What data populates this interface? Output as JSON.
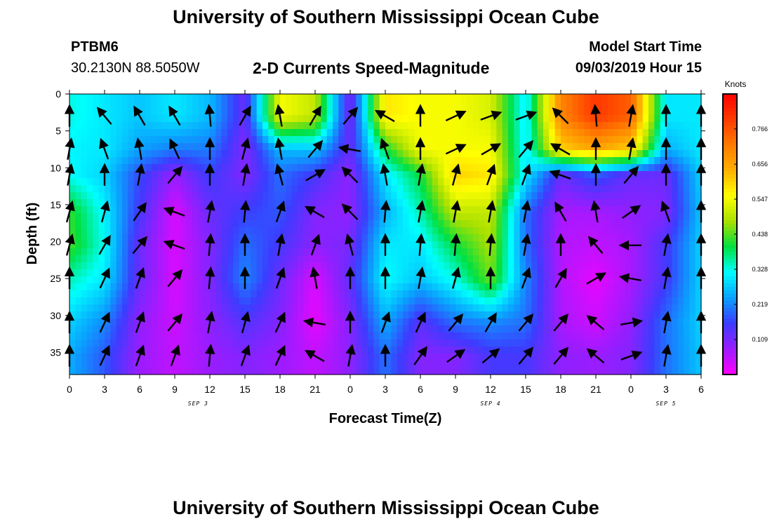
{
  "header": {
    "title": "University of Southern Mississippi Ocean Cube",
    "station": "PTBM6",
    "latlon": "30.2130N 88.5050W",
    "subtitle": "2-D Currents Speed-Magnitude",
    "model_start_label": "Model Start Time",
    "model_start_value": "09/03/2019 Hour 15"
  },
  "footer": {
    "title": "University of Southern Mississippi Ocean Cube"
  },
  "chart_data": {
    "type": "heatmap",
    "xlabel": "Forecast Time(Z)",
    "ylabel": "Depth (ft)",
    "x_tick_labels": [
      "0",
      "3",
      "6",
      "9",
      "12",
      "15",
      "18",
      "21",
      "0",
      "3",
      "6",
      "9",
      "12",
      "15",
      "18",
      "21",
      "0",
      "3",
      "6"
    ],
    "y_ticks": [
      0,
      5,
      10,
      15,
      20,
      25,
      30,
      35
    ],
    "ylim": [
      0,
      38
    ],
    "y_inverted": true,
    "xlim_hours": [
      0,
      54
    ],
    "date_labels": [
      {
        "text": "SEP 3",
        "hour": 11
      },
      {
        "text": "SEP 4",
        "hour": 36
      },
      {
        "text": "SEP 5",
        "hour": 51
      }
    ],
    "colorbar": {
      "title": "Knots",
      "ticks": [
        "0.766",
        "0.656",
        "0.547",
        "0.438",
        "0.328",
        "0.219",
        "0.109"
      ],
      "tick_values": [
        0.766,
        0.656,
        0.547,
        0.438,
        0.328,
        0.219,
        0.109
      ],
      "range": [
        0,
        0.875
      ],
      "colors": [
        "#ff00ff",
        "#9b1cff",
        "#3c3cff",
        "#0aa0ff",
        "#00ffff",
        "#00e040",
        "#a8e000",
        "#ffff00",
        "#ffb000",
        "#ff7a00",
        "#ff3a00",
        "#ff0000"
      ]
    },
    "vector_x_hours": [
      0,
      3,
      6,
      9,
      12,
      15,
      18,
      21,
      24,
      27,
      30,
      33,
      36,
      39,
      42,
      45,
      48,
      51,
      54
    ],
    "vector_depths": [
      3,
      7.5,
      11,
      16,
      20.5,
      25,
      31,
      35.5
    ],
    "speed_field": [
      [
        0.33,
        0.3,
        0.27,
        0.3,
        0.26,
        0.12,
        0.55,
        0.5,
        0.1,
        0.58,
        0.55,
        0.55,
        0.52,
        0.3,
        0.7,
        0.8,
        0.75,
        0.3,
        0.3
      ],
      [
        0.31,
        0.3,
        0.24,
        0.21,
        0.21,
        0.1,
        0.26,
        0.27,
        0.12,
        0.4,
        0.55,
        0.55,
        0.55,
        0.3,
        0.6,
        0.65,
        0.6,
        0.25,
        0.3
      ],
      [
        0.32,
        0.28,
        0.17,
        0.08,
        0.16,
        0.1,
        0.2,
        0.15,
        0.09,
        0.3,
        0.4,
        0.6,
        0.58,
        0.3,
        0.12,
        0.18,
        0.12,
        0.12,
        0.28
      ],
      [
        0.42,
        0.31,
        0.15,
        0.03,
        0.12,
        0.16,
        0.18,
        0.1,
        0.09,
        0.25,
        0.35,
        0.5,
        0.5,
        0.2,
        0.07,
        0.07,
        0.09,
        0.1,
        0.27
      ],
      [
        0.43,
        0.32,
        0.12,
        0.03,
        0.1,
        0.2,
        0.15,
        0.09,
        0.11,
        0.3,
        0.3,
        0.4,
        0.48,
        0.2,
        0.06,
        0.05,
        0.07,
        0.15,
        0.28
      ],
      [
        0.35,
        0.3,
        0.12,
        0.03,
        0.1,
        0.22,
        0.12,
        0.03,
        0.13,
        0.32,
        0.27,
        0.33,
        0.45,
        0.22,
        0.06,
        0.02,
        0.07,
        0.15,
        0.28
      ],
      [
        0.28,
        0.22,
        0.09,
        0.04,
        0.09,
        0.14,
        0.1,
        0.02,
        0.1,
        0.25,
        0.13,
        0.2,
        0.22,
        0.2,
        0.07,
        0.04,
        0.09,
        0.2,
        0.28
      ],
      [
        0.25,
        0.18,
        0.08,
        0.05,
        0.08,
        0.1,
        0.08,
        0.05,
        0.09,
        0.2,
        0.1,
        0.1,
        0.15,
        0.15,
        0.09,
        0.08,
        0.1,
        0.2,
        0.27
      ]
    ],
    "vector_angles_deg": [
      [
        0,
        -40,
        -30,
        -30,
        -5,
        30,
        -10,
        30,
        40,
        -60,
        0,
        65,
        70,
        70,
        -45,
        -5,
        10,
        0,
        0
      ],
      [
        10,
        -20,
        -10,
        -25,
        0,
        15,
        -10,
        40,
        -80,
        -20,
        0,
        65,
        60,
        40,
        -60,
        0,
        10,
        0,
        0
      ],
      [
        10,
        0,
        10,
        40,
        0,
        10,
        -15,
        60,
        -45,
        -10,
        10,
        15,
        20,
        20,
        -70,
        0,
        40,
        0,
        0
      ],
      [
        15,
        15,
        35,
        -70,
        10,
        5,
        20,
        -60,
        -45,
        5,
        10,
        10,
        10,
        10,
        -30,
        -10,
        55,
        -20,
        0
      ],
      [
        15,
        30,
        40,
        -70,
        5,
        0,
        10,
        20,
        -15,
        0,
        5,
        5,
        5,
        10,
        0,
        -40,
        -90,
        10,
        0
      ],
      [
        0,
        25,
        20,
        40,
        5,
        0,
        20,
        -10,
        0,
        0,
        10,
        15,
        0,
        20,
        30,
        60,
        -80,
        10,
        0
      ],
      [
        0,
        25,
        20,
        40,
        10,
        15,
        25,
        -80,
        0,
        20,
        25,
        40,
        30,
        40,
        40,
        -50,
        80,
        10,
        0
      ],
      [
        0,
        25,
        20,
        20,
        5,
        20,
        25,
        -60,
        10,
        0,
        35,
        55,
        50,
        40,
        40,
        -50,
        70,
        10,
        0
      ]
    ]
  }
}
